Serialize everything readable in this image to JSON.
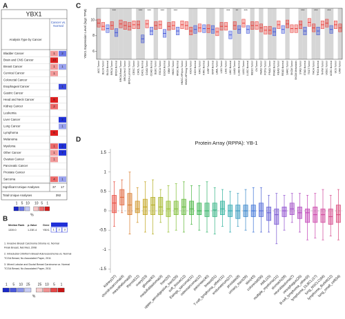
{
  "panels": [
    "A",
    "B",
    "C",
    "D"
  ],
  "oncomine": {
    "title": "YBX1",
    "row_header": "Analysis Type by Cancer",
    "col_header": "Cancer vs. Normal",
    "rows": [
      {
        "name": "Bladder Cancer",
        "up": 1,
        "up_color": "#f29a9a",
        "down": 2,
        "down_color": "#6c78e6"
      },
      {
        "name": "Brain and CNS Cancer",
        "up": 10,
        "up_color": "#e02020",
        "down": null,
        "down_color": null
      },
      {
        "name": "Breast Cancer",
        "up": 1,
        "up_color": "#f29a9a",
        "down": 1,
        "down_color": "#9aa2ee"
      },
      {
        "name": "Cervical Cancer",
        "up": 1,
        "up_color": "#f29a9a",
        "down": null,
        "down_color": null
      },
      {
        "name": "Colorectal Cancer",
        "up": null,
        "up_color": null,
        "down": null,
        "down_color": null
      },
      {
        "name": "Esophageal Cancer",
        "up": null,
        "up_color": null,
        "down": 1,
        "down_color": "#3a48dc"
      },
      {
        "name": "Gastric Cancer",
        "up": null,
        "up_color": null,
        "down": null,
        "down_color": null
      },
      {
        "name": "Head and Neck Cancer",
        "up": 8,
        "up_color": "#e02020",
        "down": null,
        "down_color": null
      },
      {
        "name": "Kidney Cancer",
        "up": 2,
        "up_color": "#ec6a6a",
        "down": null,
        "down_color": null
      },
      {
        "name": "Leukemia",
        "up": null,
        "up_color": null,
        "down": null,
        "down_color": null
      },
      {
        "name": "Liver Cancer",
        "up": null,
        "up_color": null,
        "down": 2,
        "down_color": "#2030d8"
      },
      {
        "name": "Lung Cancer",
        "up": null,
        "up_color": null,
        "down": 1,
        "down_color": "#9aa2ee"
      },
      {
        "name": "Lymphoma",
        "up": 6,
        "up_color": "#e02020",
        "down": null,
        "down_color": null
      },
      {
        "name": "Melanoma",
        "up": null,
        "up_color": null,
        "down": null,
        "down_color": null
      },
      {
        "name": "Myeloma",
        "up": 1,
        "up_color": "#ec6a6a",
        "down": 2,
        "down_color": "#2030d8"
      },
      {
        "name": "Other Cancer",
        "up": 1,
        "up_color": "#f29a9a",
        "down": 7,
        "down_color": "#2030d8"
      },
      {
        "name": "Ovarian Cancer",
        "up": 1,
        "up_color": "#f29a9a",
        "down": null,
        "down_color": null
      },
      {
        "name": "Pancreatic Cancer",
        "up": null,
        "up_color": null,
        "down": null,
        "down_color": null
      },
      {
        "name": "Prostate Cancer",
        "up": null,
        "up_color": null,
        "down": null,
        "down_color": null
      },
      {
        "name": "Sarcoma",
        "up": 4,
        "up_color": "#ec6a6a",
        "down": 1,
        "down_color": "#9aa2ee"
      }
    ],
    "significant": {
      "label": "Significant Unique Analyses",
      "up": 37,
      "down": 17
    },
    "total": {
      "label": "Total Unique Analyses",
      "value": 392
    },
    "legend": {
      "blue": [
        "1",
        "5",
        "10"
      ],
      "red": [
        "10",
        "5",
        "1"
      ],
      "unit": "%"
    }
  },
  "median_rank": {
    "headers": [
      "Median Rank",
      "p-Value",
      "Gene"
    ],
    "row": [
      "1339.0",
      "1.23E-4",
      "YBX1"
    ],
    "cells": [
      "1",
      "2",
      "3"
    ],
    "notes": [
      "1. Invasive Breast Carcinoma Stroma vs. Normal",
      "Finak Breast, Nat Med, 2008",
      "2. Intraductal Cribriform Breast Adenocarcinoma vs. Normal",
      "TCGA Breast, No Associated Paper, 2011",
      "3. Mixed Lobular and Ductal Breast Carcinoma vs. Normal",
      "TCGA Breast, No Associated Paper, 2011"
    ],
    "legend": {
      "blue": [
        "1",
        "5",
        "10",
        "25"
      ],
      "red": [
        "25",
        "10",
        "5",
        "1"
      ],
      "unit": "%"
    }
  },
  "chart_data": [
    {
      "type": "box",
      "ylabel": "YBX1 Expression Level (log2 TPM)",
      "tumor_color": "#e8332f",
      "normal_color": "#3a4fd8",
      "categories": [
        "ACC.Tumor",
        "BLCA.Tumor",
        "BLCA.Normal",
        "BRCA.Tumor",
        "BRCA.Normal",
        "BRCA-Basal.Tumor",
        "BRCA-Her2.Tumor",
        "BRCA-Luminal.Tumor",
        "CESC.Tumor",
        "CHOL.Tumor",
        "CHOL.Normal",
        "COAD.Tumor",
        "COAD.Normal",
        "DLBC.Tumor",
        "ESCA.Tumor",
        "ESCA.Normal",
        "GBM.Tumor",
        "HNSC.Tumor",
        "HNSC.Normal",
        "HNSC-HPVpos.Tumor",
        "HNSC-HPVneg.Tumor",
        "KICH.Tumor",
        "KICH.Normal",
        "KIRC.Tumor",
        "KIRC.Normal",
        "KIRP.Tumor",
        "KIRP.Normal",
        "LAML.Tumor",
        "LGG.Tumor",
        "LIHC.Tumor",
        "LIHC.Normal",
        "LUAD.Tumor",
        "LUAD.Normal",
        "LUSC.Tumor",
        "LUSC.Normal",
        "MESO.Tumor",
        "OV.Tumor",
        "PAAD.Tumor",
        "PCPG.Tumor",
        "PRAD.Tumor",
        "PRAD.Normal",
        "READ.Tumor",
        "READ.Normal",
        "SARC.Tumor",
        "SKCM.Tumor",
        "SKCM.Metastasis",
        "STAD.Tumor",
        "STAD.Normal",
        "TGCT.Tumor",
        "THCA.Tumor",
        "THCA.Normal",
        "THYM.Tumor",
        "UCEC.Tumor",
        "UCEC.Normal",
        "UCS.Tumor",
        "UVM.Tumor"
      ],
      "median": [
        9.6,
        9.2,
        8.9,
        9.3,
        8.4,
        9.5,
        9.3,
        9.2,
        9.4,
        9.4,
        7.6,
        9.5,
        8.6,
        9.3,
        9.4,
        8.3,
        9.2,
        9.3,
        8.6,
        9.4,
        9.3,
        8.6,
        8.8,
        9.0,
        8.9,
        8.9,
        8.8,
        8.5,
        9.2,
        9.2,
        8.1,
        9.3,
        8.8,
        9.6,
        8.8,
        9.3,
        9.3,
        9.0,
        8.7,
        8.7,
        8.5,
        9.4,
        8.8,
        9.5,
        8.9,
        8.9,
        9.4,
        8.6,
        9.7,
        9.0,
        8.6,
        9.4,
        9.6,
        8.8,
        9.4,
        9.0
      ],
      "q1": [
        9.1,
        8.7,
        8.4,
        8.8,
        7.9,
        9.0,
        8.8,
        8.7,
        8.9,
        8.9,
        7.1,
        9.0,
        8.1,
        8.8,
        8.9,
        7.8,
        8.7,
        8.8,
        8.1,
        8.9,
        8.8,
        8.1,
        8.3,
        8.5,
        8.4,
        8.4,
        8.3,
        8.0,
        8.7,
        8.7,
        7.6,
        8.8,
        8.3,
        9.1,
        8.3,
        8.8,
        8.8,
        8.5,
        8.2,
        8.2,
        8.0,
        8.9,
        8.3,
        9.0,
        8.4,
        8.4,
        8.9,
        8.1,
        9.2,
        8.5,
        8.1,
        8.9,
        9.1,
        8.3,
        8.9,
        8.5
      ],
      "q3": [
        10.1,
        9.7,
        9.4,
        9.8,
        8.9,
        10.0,
        9.8,
        9.7,
        9.9,
        9.9,
        8.1,
        10.0,
        9.1,
        9.8,
        9.9,
        8.8,
        9.7,
        9.8,
        9.1,
        9.9,
        9.8,
        9.1,
        9.3,
        9.5,
        9.4,
        9.4,
        9.3,
        9.0,
        9.7,
        9.7,
        8.6,
        9.8,
        9.3,
        10.1,
        9.3,
        9.8,
        9.8,
        9.5,
        9.2,
        9.2,
        9.0,
        9.9,
        9.3,
        10.0,
        9.4,
        9.4,
        9.9,
        9.1,
        10.2,
        9.5,
        9.1,
        9.9,
        10.1,
        9.3,
        9.9,
        9.5
      ],
      "significance": [
        null,
        null,
        null,
        "***",
        null,
        null,
        null,
        null,
        null,
        "***",
        null,
        "***",
        null,
        null,
        "***",
        null,
        null,
        "***",
        null,
        null,
        null,
        null,
        null,
        null,
        null,
        null,
        null,
        null,
        null,
        "***",
        null,
        "**",
        null,
        "***",
        null,
        null,
        null,
        null,
        null,
        null,
        null,
        null,
        null,
        null,
        null,
        null,
        "***",
        null,
        null,
        "***",
        null,
        null,
        "***",
        null,
        null,
        null
      ],
      "ylim": [
        5,
        11.5
      ],
      "yticks": [
        6,
        8,
        10
      ]
    },
    {
      "type": "box",
      "title": "Protein Array (RPPA): YB-1",
      "reference_line": 0,
      "palette": [
        "#e8473a",
        "#c9a21c",
        "#8fbf2a",
        "#34b34a",
        "#2bb1a8",
        "#3a6fd8",
        "#8a4fd0",
        "#c73fb3",
        "#d9487a"
      ],
      "categories": [
        "kidney(37)",
        "chondrosarcoma(4)",
        "mesothelioma(9)",
        "thyroid(12)",
        "ovary(53)",
        "glioma(40)",
        "medulloblastoma(4)",
        "liver(20)",
        "upper_aerodigestive_tract(26)",
        "soft_tissue(12)",
        "Ewings_sarcoma(11)",
        "osteosarcoma(12)",
        "pancreas(40)",
        "breast(51)",
        "T-cell_lymphoma_other(11)",
        "endometrium(27)",
        "prostate(8)",
        "urinary_tract(26)",
        "skin(43)",
        "colorectal(56)",
        "AML(15)",
        "multiple_myeloma(11)",
        "stomach(28)",
        "neuroblastoma(7)",
        "oesophagus(26)",
        "B-cell_lymphoma_other(9)",
        "lymphoma_DLBCL(17)",
        "lung_NSCLC(94)",
        "lymphoma_Burkitt(12)",
        "lung_small_cell(54)"
      ],
      "median": [
        0.2,
        0.35,
        0.15,
        0.05,
        0.1,
        0.15,
        0.1,
        0.05,
        0.05,
        0.1,
        0.05,
        0,
        0,
        0.02,
        0.05,
        0,
        0,
        0,
        0,
        0,
        -0.05,
        -0.1,
        0,
        0.05,
        -0.05,
        -0.05,
        -0.1,
        -0.1,
        -0.15,
        -0.1
      ],
      "q1": [
        -0.05,
        0.15,
        -0.1,
        -0.05,
        -0.1,
        -0.1,
        -0.1,
        -0.15,
        -0.1,
        -0.1,
        -0.1,
        -0.1,
        -0.15,
        -0.15,
        -0.1,
        -0.15,
        -0.2,
        -0.15,
        -0.15,
        -0.15,
        -0.25,
        -0.35,
        -0.15,
        -0.1,
        -0.2,
        -0.3,
        -0.3,
        -0.3,
        -0.35,
        -0.3
      ],
      "q3": [
        0.4,
        0.55,
        0.45,
        0.25,
        0.3,
        0.35,
        0.35,
        0.25,
        0.25,
        0.3,
        0.25,
        0.2,
        0.2,
        0.2,
        0.25,
        0.15,
        0.15,
        0.15,
        0.15,
        0.2,
        0.1,
        0.05,
        0.1,
        0.2,
        0.1,
        0.05,
        0.1,
        0.05,
        0.05,
        0.15
      ],
      "low": [
        -0.4,
        -0.05,
        -0.6,
        -0.3,
        -0.55,
        -0.6,
        -0.3,
        -0.55,
        -0.5,
        -0.55,
        -0.35,
        -0.5,
        -0.55,
        -0.6,
        -0.4,
        -0.55,
        -0.4,
        -0.5,
        -0.55,
        -0.55,
        -0.55,
        -0.85,
        -0.5,
        -0.3,
        -0.55,
        -0.75,
        -0.7,
        -0.75,
        -0.65,
        -0.75
      ],
      "high": [
        0.75,
        0.8,
        1.0,
        0.6,
        0.75,
        0.8,
        0.55,
        0.65,
        0.7,
        0.75,
        0.65,
        0.65,
        0.75,
        0.6,
        0.55,
        0.5,
        0.45,
        0.55,
        0.6,
        0.6,
        0.4,
        0.45,
        0.4,
        0.45,
        0.45,
        0.4,
        0.45,
        0.55,
        0.4,
        0.55
      ],
      "ylim": [
        -1.6,
        1.6
      ],
      "yticks": [
        -1.5,
        -1,
        -0.5,
        0,
        0.5,
        1,
        1.5
      ]
    }
  ]
}
